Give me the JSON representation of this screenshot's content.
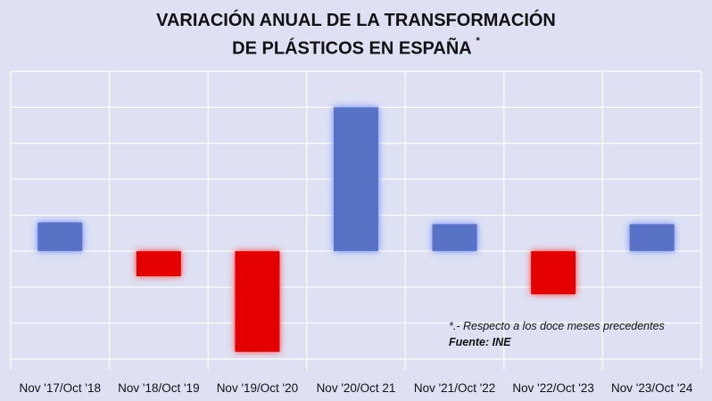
{
  "chart_data": {
    "type": "bar",
    "title_line1": "VARIACIÓN ANUAL DE LA TRANSFORMACIÓN",
    "title_line2": "DE PLÁSTICOS EN ESPAÑA",
    "title_mark": "*",
    "categories": [
      "Nov '17/Oct '18",
      "Nov '18/Oct '19",
      "Nov '19/Oct '20",
      "Nov '20/Oct 21",
      "Nov '21/Oct '22",
      "Nov '22/Oct '23",
      "Nov '23/Oct '24"
    ],
    "values": [
      0.8,
      -0.7,
      -2.8,
      4.0,
      0.75,
      -1.2,
      0.75
    ],
    "ylim": [
      -3.3,
      5.0
    ],
    "grid": true,
    "colors": {
      "positive": "#5872c6",
      "negative": "#e50000",
      "grid": "#ffffff",
      "background": "#dde1f3"
    },
    "note": "*.- Respecto a los doce meses precedentes",
    "source": "Fuente: INE"
  }
}
